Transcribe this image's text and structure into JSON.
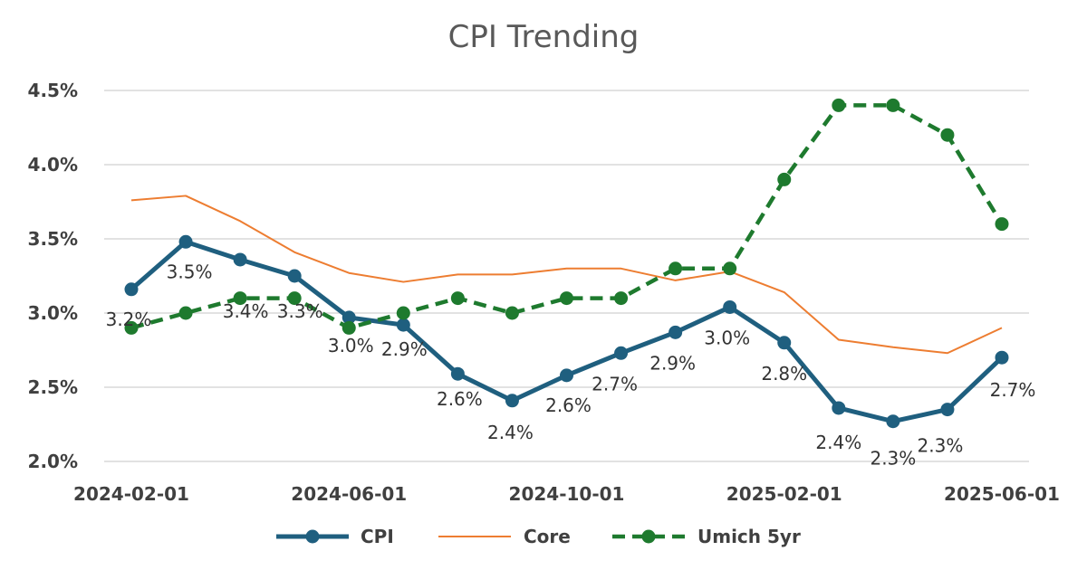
{
  "chart_data": {
    "type": "line",
    "title": "CPI Trending",
    "xlabel": "",
    "ylabel": "",
    "x": [
      "2024-02-01",
      "2024-03-01",
      "2024-04-01",
      "2024-05-01",
      "2024-06-01",
      "2024-07-01",
      "2024-08-01",
      "2024-09-01",
      "2024-10-01",
      "2024-11-01",
      "2024-12-01",
      "2025-01-01",
      "2025-02-01",
      "2025-03-01",
      "2025-04-01",
      "2025-05-01",
      "2025-06-01"
    ],
    "x_tick_labels": [
      "2024-02-01",
      "2024-06-01",
      "2024-10-01",
      "2025-02-01",
      "2025-06-01"
    ],
    "y_tick_labels": [
      "2.0%",
      "2.5%",
      "3.0%",
      "3.5%",
      "4.0%",
      "4.5%"
    ],
    "ylim": [
      2.0,
      4.5
    ],
    "grid": true,
    "legend_position": "bottom",
    "series": [
      {
        "name": "CPI",
        "color": "#1f5f7f",
        "style": "solid-markers",
        "values": [
          3.16,
          3.48,
          3.36,
          3.25,
          2.97,
          2.92,
          2.59,
          2.41,
          2.58,
          2.73,
          2.87,
          3.04,
          2.8,
          2.36,
          2.27,
          2.35,
          2.7
        ],
        "labels": [
          "3.2%",
          "3.5%",
          "3.4%",
          "3.3%",
          "3.0%",
          "2.9%",
          "2.6%",
          "2.4%",
          "2.6%",
          "2.7%",
          "2.9%",
          "3.0%",
          "2.8%",
          "2.4%",
          "2.3%",
          "2.3%",
          "2.7%"
        ]
      },
      {
        "name": "Core",
        "color": "#ed7d31",
        "style": "thin",
        "values": [
          3.76,
          3.79,
          3.62,
          3.41,
          3.27,
          3.21,
          3.26,
          3.26,
          3.3,
          3.3,
          3.22,
          3.28,
          3.14,
          2.82,
          2.77,
          2.73,
          2.9
        ]
      },
      {
        "name": "Umich 5yr",
        "color": "#1e7a2e",
        "style": "dashed-markers",
        "values": [
          2.9,
          3.0,
          3.1,
          3.1,
          2.9,
          3.0,
          3.1,
          3.0,
          3.1,
          3.1,
          3.3,
          3.3,
          3.9,
          4.4,
          4.4,
          4.2,
          3.6
        ]
      }
    ]
  }
}
